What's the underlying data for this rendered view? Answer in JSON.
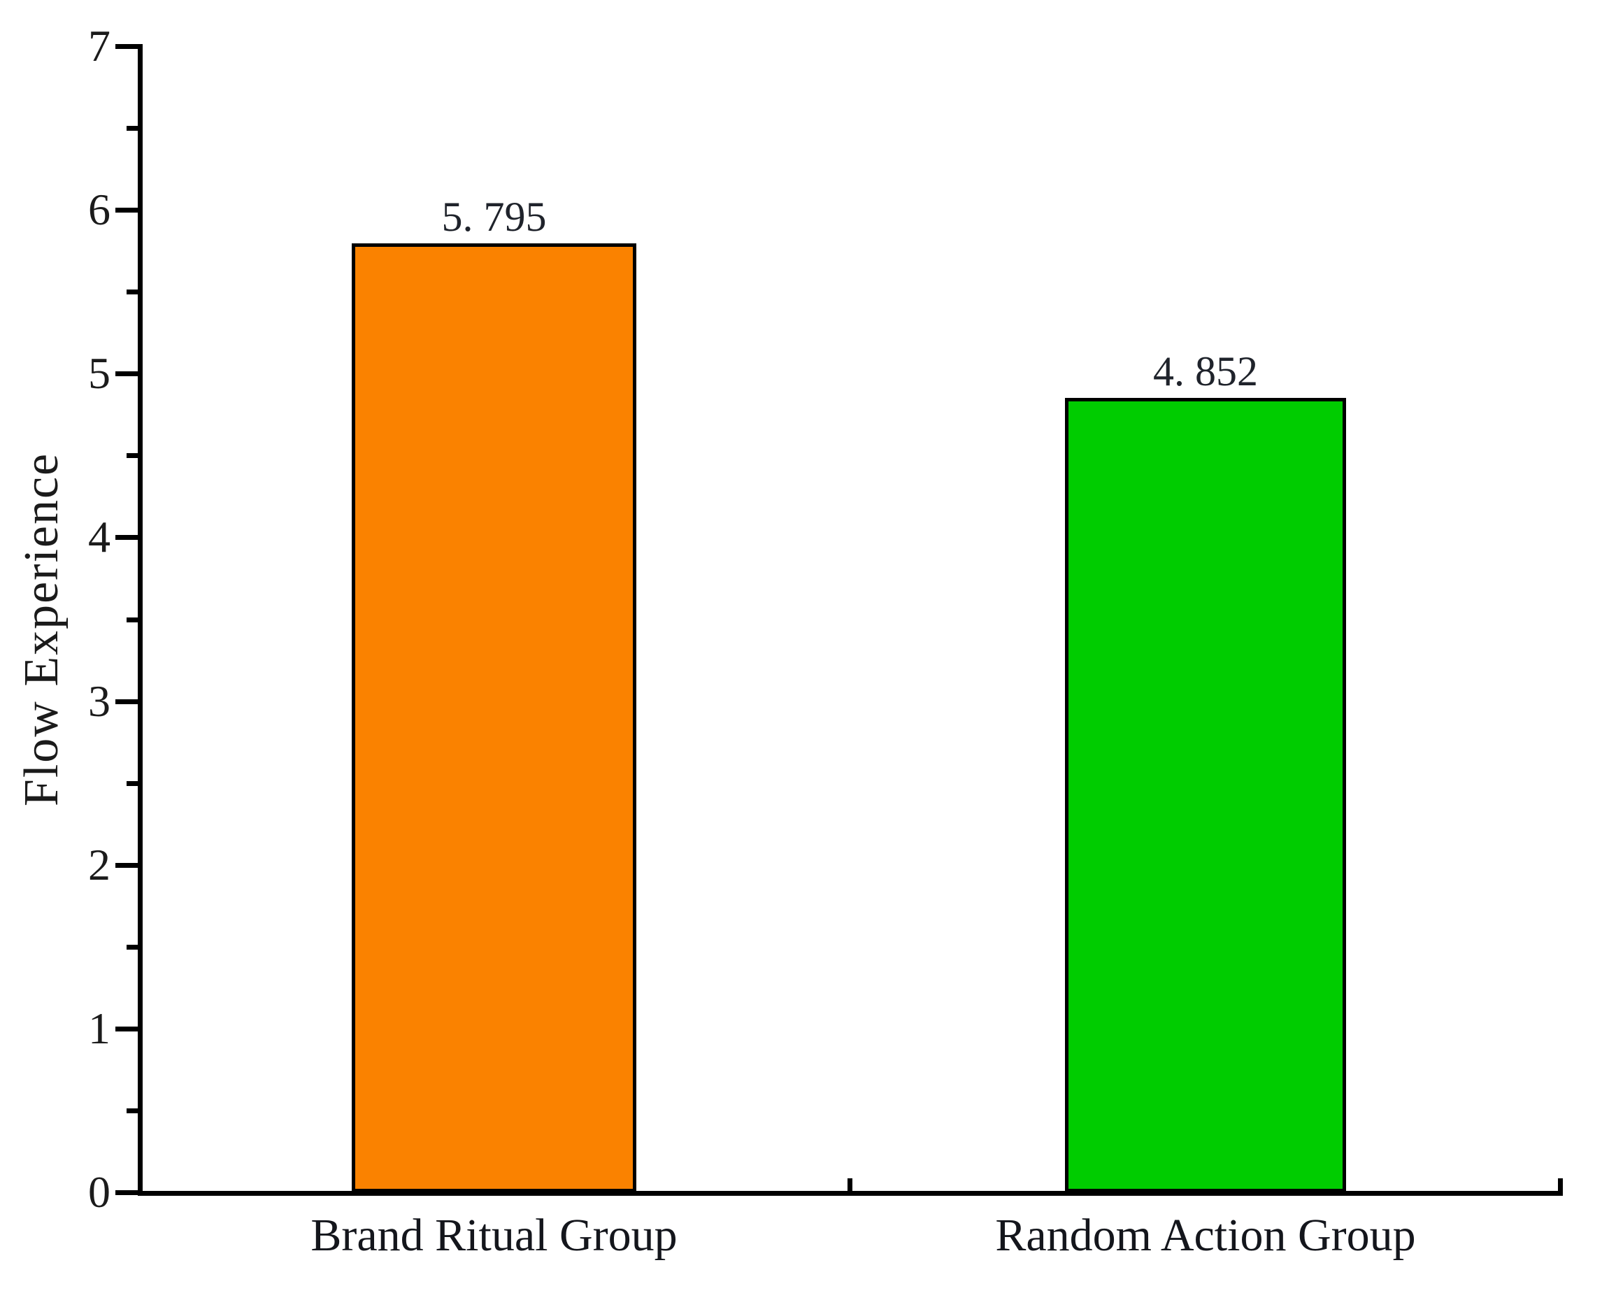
{
  "chart_data": {
    "type": "bar",
    "title": "",
    "ylabel": "Flow Experience",
    "xlabel": "",
    "categories": [
      "Brand Ritual Group",
      "Random Action Group"
    ],
    "values": [
      5.795,
      4.852
    ],
    "value_labels": [
      "5. 795",
      "4. 852"
    ],
    "bar_colors": [
      "#FA8200",
      "#00CC00"
    ],
    "bar_border_color": "#000000",
    "ylim": [
      0,
      7
    ],
    "y_major_ticks": [
      7,
      6,
      5,
      4,
      3,
      2,
      1,
      0
    ],
    "y_minor_step": 0.5,
    "grid": false,
    "legend": null,
    "axis_color": "#000000",
    "tick_label_color": "#1b1b1b"
  }
}
